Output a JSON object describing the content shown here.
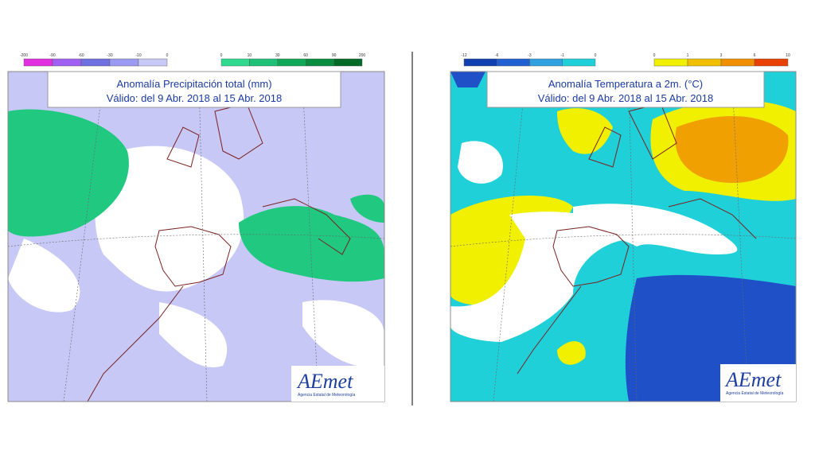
{
  "maps": [
    {
      "title": "Anomalía Precipitación total (mm)",
      "subtitle": "Válido: del 9 Abr. 2018 al 15 Abr. 2018",
      "legend": [
        {
          "labels": [
            -200,
            -90,
            -60,
            -30,
            -10,
            0
          ],
          "colors": [
            "#e030e0",
            "#a060f0",
            "#7070e0",
            "#9a9af0",
            "#c8c8f6"
          ]
        },
        {
          "labels": [
            0,
            10,
            30,
            60,
            90,
            200
          ],
          "colors": [
            "#30d890",
            "#20c078",
            "#10a858",
            "#088c40",
            "#006a28"
          ]
        }
      ],
      "logo": {
        "name": "AEmet",
        "agency": "Agencia Estatal de Meteorología"
      }
    },
    {
      "title": "Anomalía Temperatura a 2m. (°C)",
      "subtitle": "Válido: del 9 Abr. 2018 al 15 Abr. 2018",
      "legend": [
        {
          "labels": [
            -12,
            -6,
            -3,
            -1,
            0
          ],
          "colors": [
            "#1040b0",
            "#2060d0",
            "#30a0e0",
            "#20d0d8"
          ]
        },
        {
          "labels": [
            0,
            1,
            3,
            6,
            10
          ],
          "colors": [
            "#f0f000",
            "#f0c000",
            "#f09000",
            "#e84000"
          ]
        }
      ],
      "logo": {
        "name": "AEmet",
        "agency": "Agencia Estatal de Meteorología"
      }
    }
  ]
}
